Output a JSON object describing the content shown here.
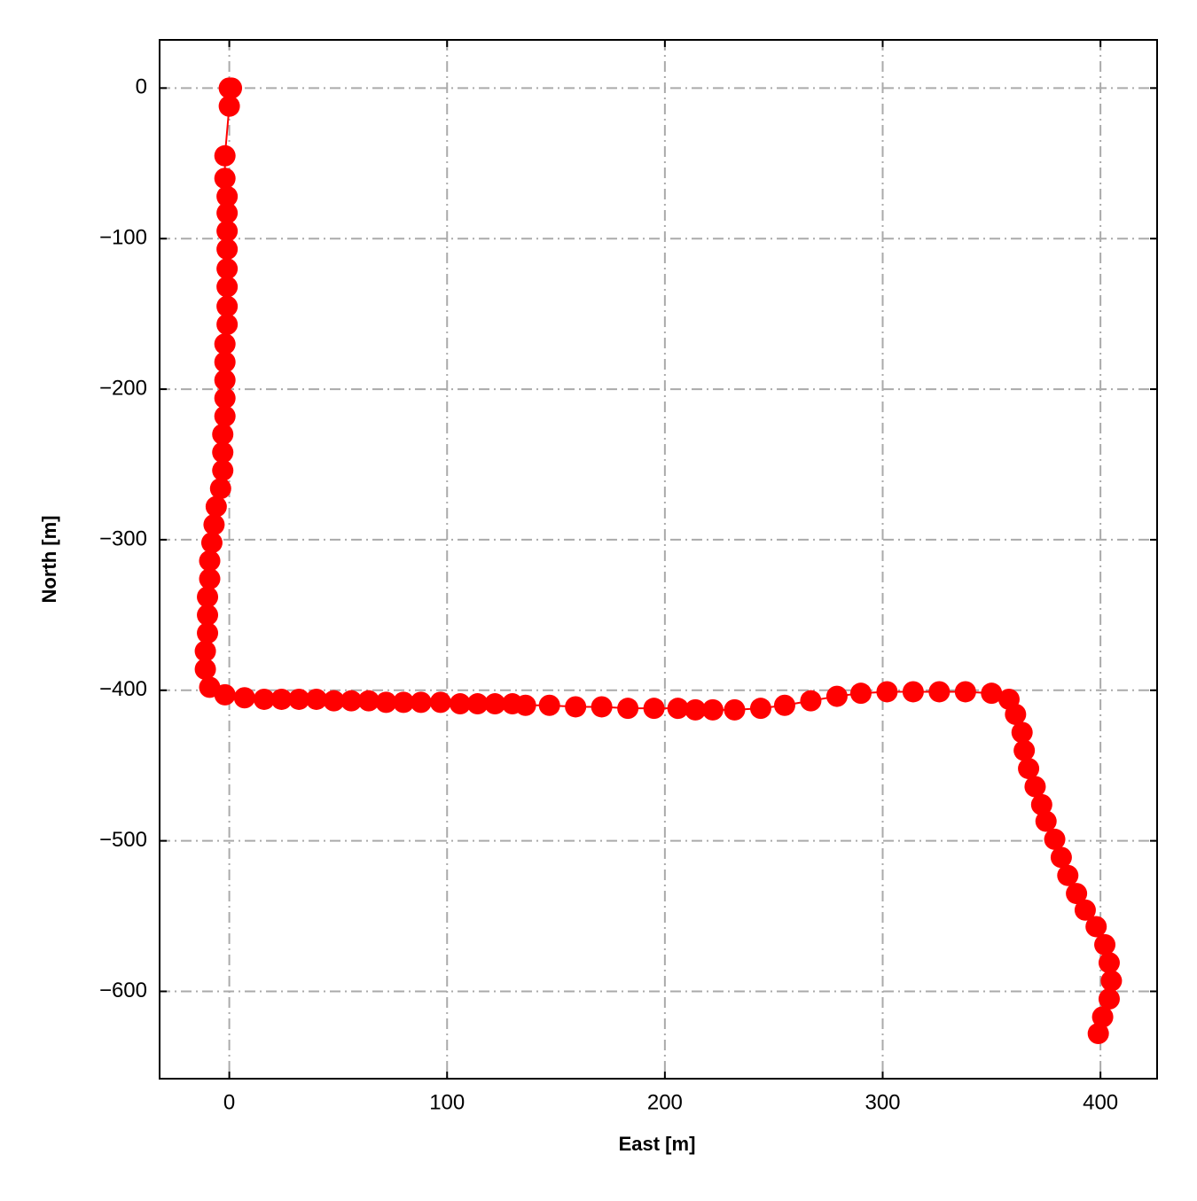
{
  "chart_data": {
    "type": "line",
    "xlabel": "East [m]",
    "ylabel": "North [m]",
    "color": "#ff0000",
    "grid": true,
    "x": [
      0,
      1,
      0,
      -2,
      -2,
      -1,
      -1,
      -1,
      -1,
      -1,
      -1,
      -1,
      -1,
      -2,
      -2,
      -2,
      -2,
      -2,
      -3,
      -3,
      -3,
      -4,
      -6,
      -7,
      -8,
      -9,
      -9,
      -10,
      -10,
      -10,
      -11,
      -11,
      -9,
      -2,
      7,
      16,
      24,
      32,
      40,
      48,
      56,
      64,
      72,
      80,
      88,
      97,
      106,
      114,
      122,
      130,
      136,
      147,
      159,
      171,
      183,
      195,
      206,
      214,
      222,
      232,
      244,
      255,
      267,
      279,
      290,
      302,
      314,
      326,
      338,
      350,
      358,
      361,
      364,
      365,
      367,
      370,
      373,
      375,
      379,
      382,
      385,
      389,
      393,
      398,
      402,
      404,
      405,
      404,
      401,
      399
    ],
    "values": [
      0,
      0,
      -12,
      -45,
      -60,
      -72,
      -83,
      -95,
      -107,
      -120,
      -132,
      -145,
      -157,
      -170,
      -182,
      -194,
      -206,
      -218,
      -230,
      -242,
      -254,
      -266,
      -278,
      -290,
      -302,
      -314,
      -326,
      -338,
      -350,
      -362,
      -374,
      -386,
      -398,
      -403,
      -405,
      -406,
      -406,
      -406,
      -406,
      -407,
      -407,
      -407,
      -408,
      -408,
      -408,
      -408,
      -409,
      -409,
      -409,
      -409,
      -410,
      -410,
      -411,
      -411,
      -412,
      -412,
      -412,
      -413,
      -413,
      -413,
      -412,
      -410,
      -407,
      -404,
      -402,
      -401,
      -401,
      -401,
      -401,
      -402,
      -406,
      -416,
      -428,
      -440,
      -452,
      -464,
      -476,
      -487,
      -499,
      -511,
      -523,
      -535,
      -546,
      -557,
      -569,
      -581,
      -593,
      -605,
      -617,
      -628
    ],
    "xlim": [
      -32,
      426
    ],
    "ylim": [
      -658,
      32
    ],
    "xticks": [
      0,
      100,
      200,
      300,
      400
    ],
    "yticks": [
      {
        "value": -600,
        "label": "−600"
      },
      {
        "value": -500,
        "label": "−500"
      },
      {
        "value": -400,
        "label": "−400"
      },
      {
        "value": -300,
        "label": "−300"
      },
      {
        "value": -200,
        "label": "−200"
      },
      {
        "value": -100,
        "label": "−100"
      },
      0
    ]
  }
}
